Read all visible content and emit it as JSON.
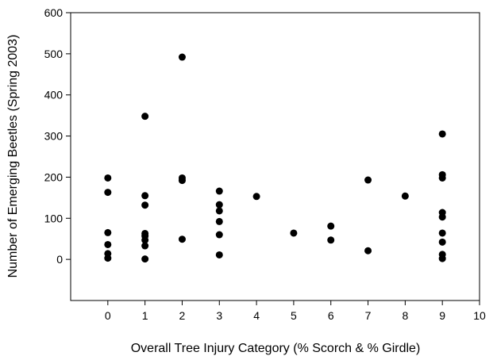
{
  "chart_data": {
    "type": "scatter",
    "xlabel": "Overall Tree Injury Category (% Scorch & % Girdle)",
    "ylabel": "Number of Emerging Beetles (Spring 2003)",
    "xlim": [
      -1,
      10
    ],
    "ylim": [
      -100,
      600
    ],
    "xticks": [
      "0",
      "1",
      "2",
      "3",
      "4",
      "5",
      "6",
      "7",
      "8",
      "9",
      "10"
    ],
    "yticks": [
      "0",
      "100",
      "200",
      "300",
      "400",
      "500",
      "600"
    ],
    "grid": false,
    "legend": "none",
    "marker_color": "#000000",
    "points": [
      {
        "x": 0,
        "y": 198
      },
      {
        "x": 0,
        "y": 163
      },
      {
        "x": 0,
        "y": 65
      },
      {
        "x": 0,
        "y": 36
      },
      {
        "x": 0,
        "y": 14
      },
      {
        "x": 0,
        "y": 3
      },
      {
        "x": 1,
        "y": 348
      },
      {
        "x": 1,
        "y": 155
      },
      {
        "x": 1,
        "y": 132
      },
      {
        "x": 1,
        "y": 63
      },
      {
        "x": 1,
        "y": 57
      },
      {
        "x": 1,
        "y": 47
      },
      {
        "x": 1,
        "y": 33
      },
      {
        "x": 1,
        "y": 1
      },
      {
        "x": 2,
        "y": 492
      },
      {
        "x": 2,
        "y": 198
      },
      {
        "x": 2,
        "y": 192
      },
      {
        "x": 2,
        "y": 49
      },
      {
        "x": 3,
        "y": 166
      },
      {
        "x": 3,
        "y": 133
      },
      {
        "x": 3,
        "y": 118
      },
      {
        "x": 3,
        "y": 92
      },
      {
        "x": 3,
        "y": 60
      },
      {
        "x": 3,
        "y": 11
      },
      {
        "x": 4,
        "y": 153
      },
      {
        "x": 5,
        "y": 64
      },
      {
        "x": 6,
        "y": 81
      },
      {
        "x": 6,
        "y": 47
      },
      {
        "x": 7,
        "y": 193
      },
      {
        "x": 7,
        "y": 21
      },
      {
        "x": 8,
        "y": 154
      },
      {
        "x": 9,
        "y": 305
      },
      {
        "x": 9,
        "y": 206
      },
      {
        "x": 9,
        "y": 198
      },
      {
        "x": 9,
        "y": 114
      },
      {
        "x": 9,
        "y": 103
      },
      {
        "x": 9,
        "y": 64
      },
      {
        "x": 9,
        "y": 42
      },
      {
        "x": 9,
        "y": 12
      },
      {
        "x": 9,
        "y": 2
      }
    ]
  }
}
